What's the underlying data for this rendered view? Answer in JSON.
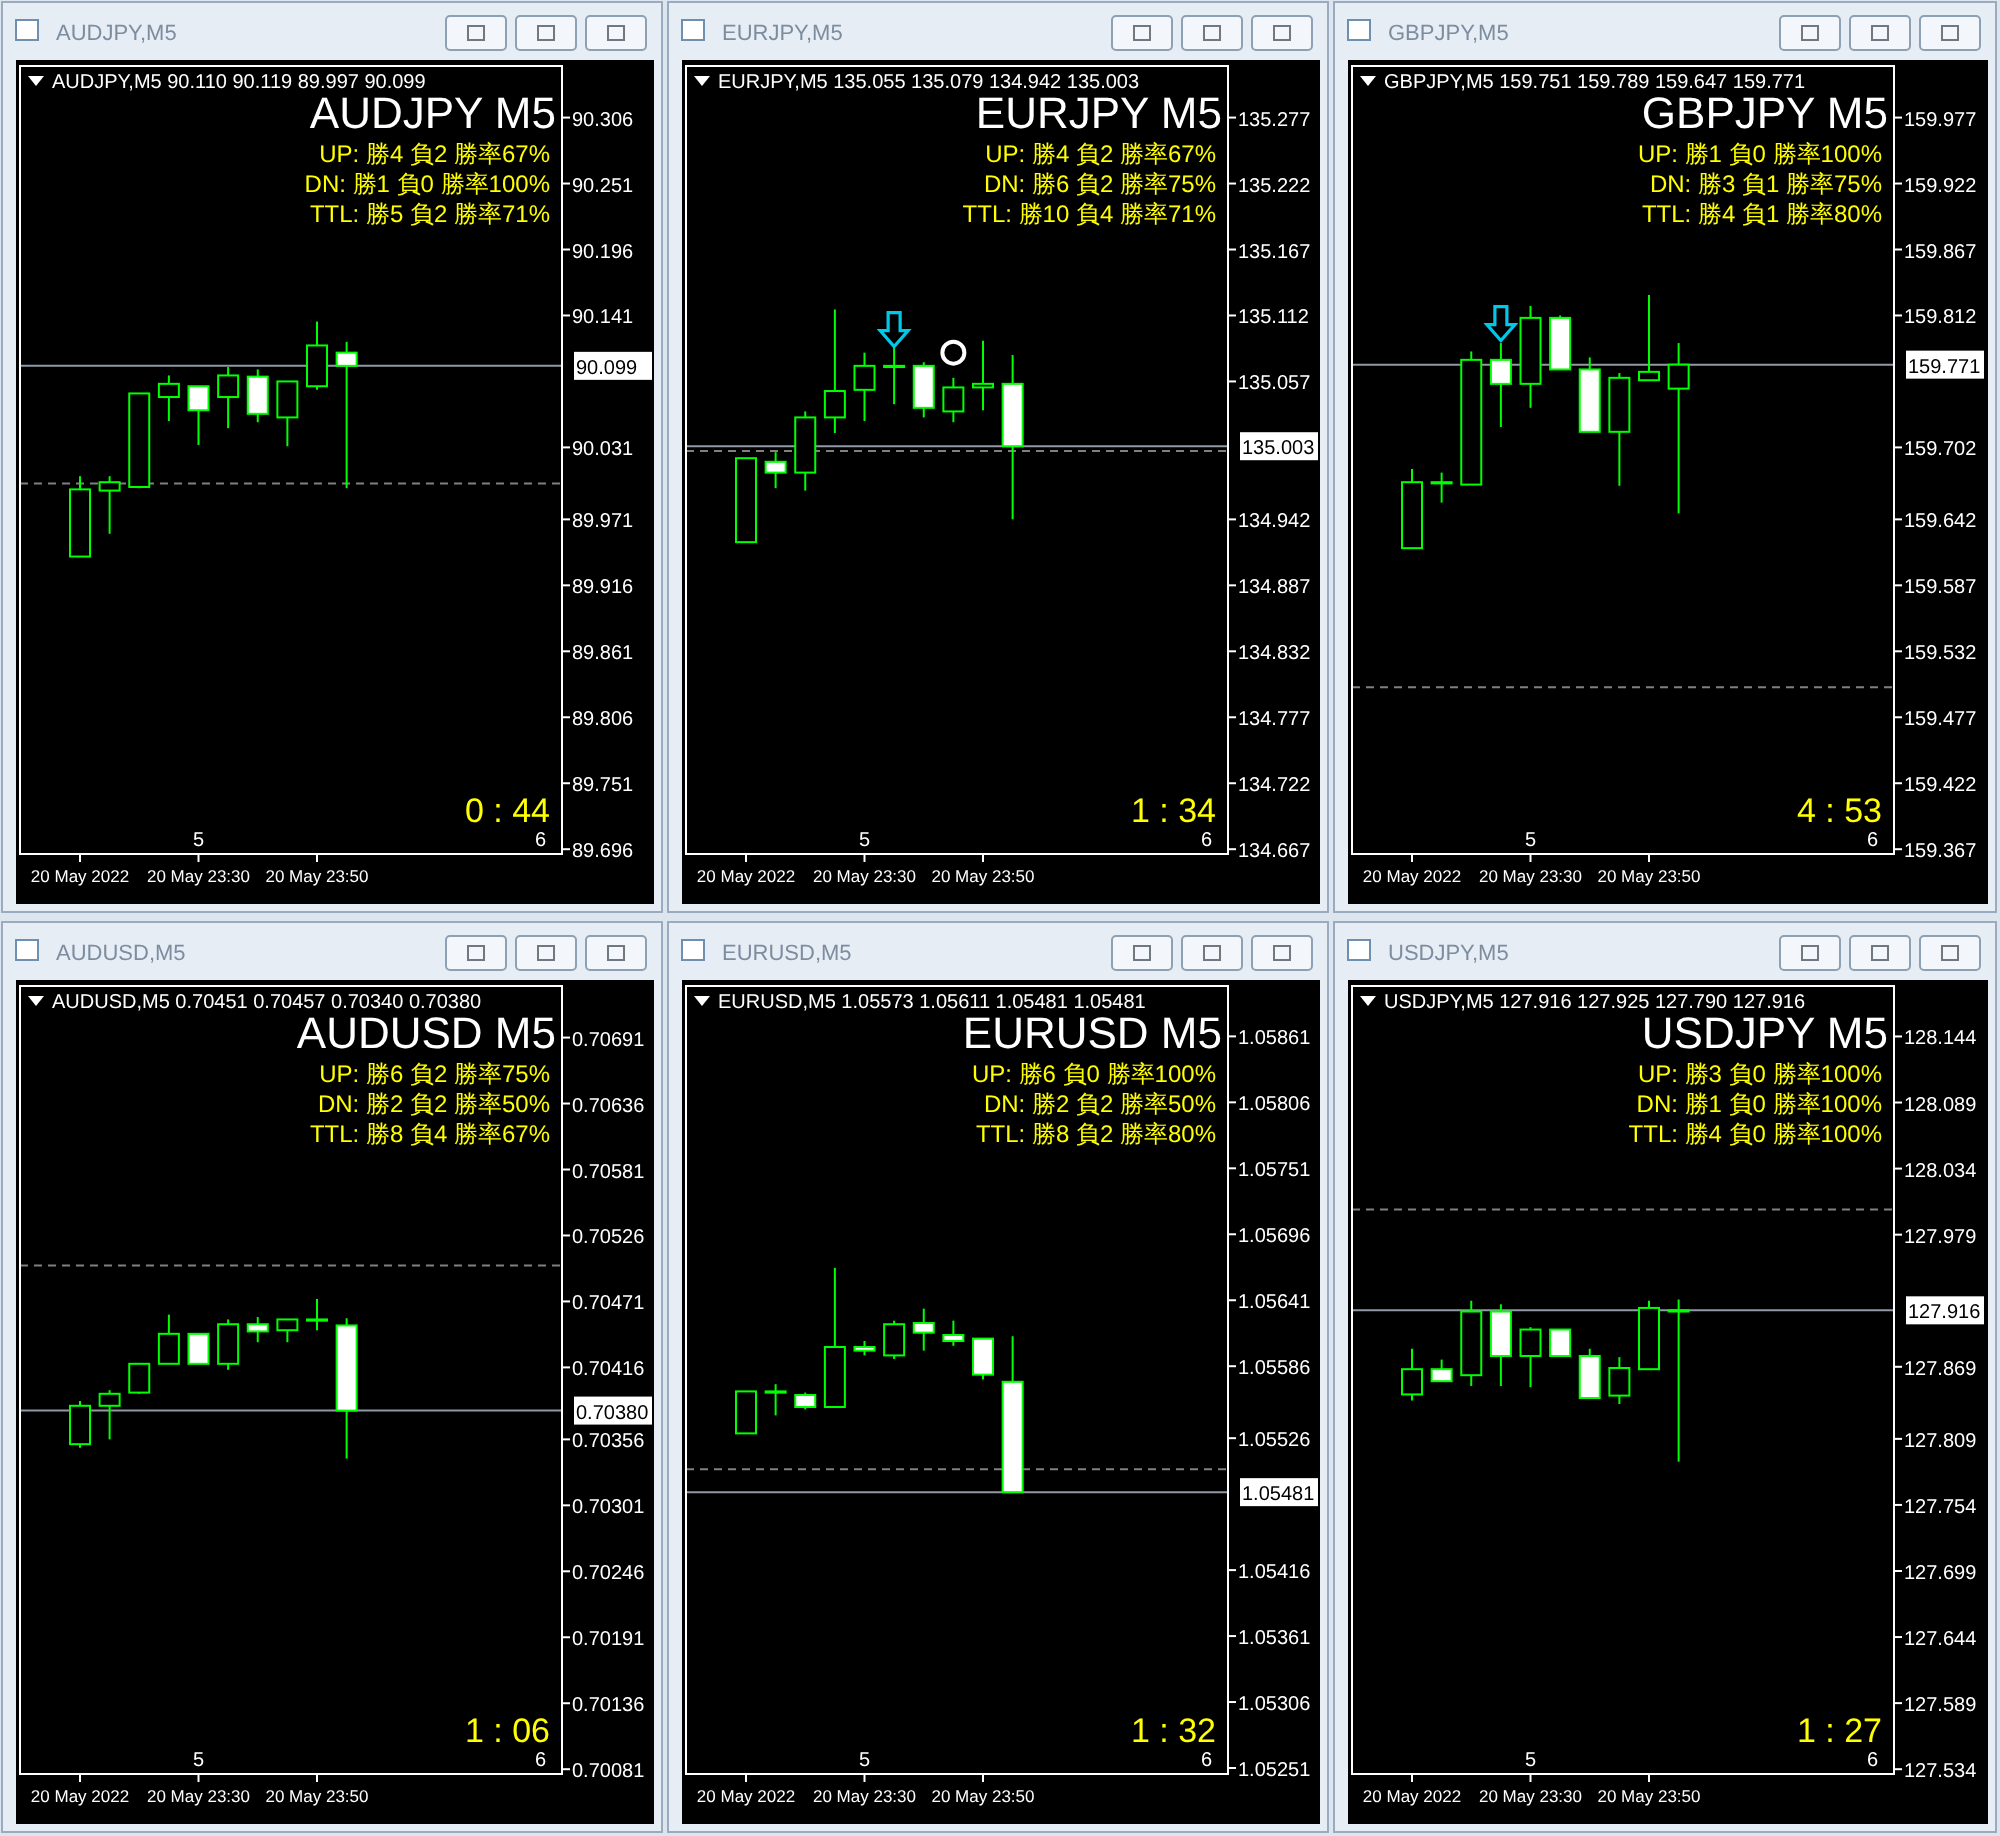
{
  "chart_data": [
    {
      "type": "candlestick",
      "title": "AUDJPY M5",
      "subtitle": "AUDJPY,M5 90.110 90.119 89.997 90.099",
      "annotations": [
        "AUDJPY,M5",
        "UP: 勝4 負2 勝率67%",
        "DN: 勝1 負0 勝率100%",
        "TTL: 勝5 負2 勝率71%",
        "0 : 44",
        "5",
        "6"
      ],
      "categories": [
        "20 May 2022",
        null,
        null,
        null,
        "20 May 23:30",
        null,
        null,
        null,
        "20 May 23:50",
        null,
        null,
        null,
        null,
        null,
        null,
        null,
        null
      ],
      "ohlc": [
        [
          89.94,
          90.007,
          89.94,
          89.996
        ],
        [
          89.995,
          90.007,
          89.959,
          90.002
        ],
        [
          89.998,
          90.076,
          89.997,
          90.076
        ],
        [
          90.073,
          90.091,
          90.053,
          90.084
        ],
        [
          90.082,
          90.082,
          90.033,
          90.062
        ],
        [
          90.073,
          90.098,
          90.047,
          90.091
        ],
        [
          90.09,
          90.096,
          90.052,
          90.059
        ],
        [
          90.056,
          90.086,
          90.032,
          90.086
        ],
        [
          90.082,
          90.136,
          90.079,
          90.116
        ],
        [
          90.11,
          90.119,
          89.997,
          90.099
        ],
        null,
        null,
        null,
        null,
        null,
        null,
        null
      ],
      "color": "#00ff00",
      "colors": [
        "#000000",
        "#000000",
        "#000000",
        "#000000",
        "#ffffff",
        "#000000",
        "#ffffff",
        "#000000",
        "#000000",
        "#ffffff",
        null,
        null,
        null,
        null,
        null,
        null,
        null
      ],
      "ylim": [
        89.692,
        90.349
      ],
      "yticks": [
        90.306,
        90.251,
        90.196,
        90.141,
        90.031,
        89.971,
        89.916,
        89.861,
        89.806,
        89.751,
        89.696
      ],
      "ref_lines": [
        {
          "axis": "y",
          "value": 90.099,
          "label": "90.099",
          "color": "#8f9aa6"
        },
        {
          "axis": "y",
          "value": 90.001,
          "color": "#808080",
          "line_style": "dashed"
        }
      ]
    },
    {
      "type": "candlestick",
      "title": "EURJPY M5",
      "subtitle": "EURJPY,M5 135.055 135.079 134.942 135.003",
      "annotations": [
        "EURJPY,M5",
        "UP: 勝4 負2 勝率67%",
        "DN: 勝6 負2 勝率75%",
        "TTL: 勝10 負4 勝率71%",
        "1 : 34",
        "5",
        "6"
      ],
      "categories": [
        "20 May 2022",
        null,
        null,
        null,
        "20 May 23:30",
        null,
        null,
        null,
        "20 May 23:50",
        null,
        null,
        null,
        null,
        null,
        null,
        null,
        null
      ],
      "ohlc": [
        [
          134.923,
          134.993,
          134.923,
          134.993
        ],
        [
          134.99,
          134.998,
          134.968,
          134.981
        ],
        [
          134.981,
          135.032,
          134.966,
          135.027
        ],
        [
          135.027,
          135.117,
          135.014,
          135.049
        ],
        [
          135.05,
          135.081,
          135.024,
          135.07
        ],
        [
          135.07,
          135.086,
          135.038,
          135.07
        ],
        [
          135.07,
          135.073,
          135.027,
          135.035
        ],
        [
          135.032,
          135.06,
          135.023,
          135.052
        ],
        [
          135.052,
          135.091,
          135.033,
          135.055
        ],
        [
          135.055,
          135.079,
          134.942,
          135.003
        ],
        null,
        null,
        null,
        null,
        null,
        null,
        null
      ],
      "color": "#00ff00",
      "colors": [
        "#000000",
        "#ffffff",
        "#000000",
        "#000000",
        "#000000",
        "#000000",
        "#ffffff",
        "#000000",
        "#000000",
        "#ffffff",
        null,
        null,
        null,
        null,
        null,
        null,
        null
      ],
      "ylim": [
        134.663,
        135.32
      ],
      "yticks": [
        135.277,
        135.222,
        135.167,
        135.112,
        135.057,
        134.942,
        134.887,
        134.832,
        134.777,
        134.722,
        134.667
      ],
      "ref_lines": [
        {
          "axis": "y",
          "value": 135.003,
          "label": "135.003",
          "color": "#8f9aa6"
        },
        {
          "axis": "y",
          "value": 134.999,
          "color": "#808080",
          "line_style": "dashed"
        }
      ],
      "series": [
        {
          "type": "scatter",
          "values": [
            null,
            null,
            null,
            null,
            null,
            135.101,
            null,
            null,
            null,
            null,
            null,
            null,
            null,
            null,
            null,
            null,
            null
          ],
          "marker": "triangle",
          "color": "#00c8e8"
        },
        {
          "type": "scatter",
          "values": [
            null,
            null,
            null,
            null,
            null,
            null,
            null,
            135.081,
            null,
            null,
            null,
            null,
            null,
            null,
            null,
            null,
            null
          ],
          "marker": "circle",
          "color": "#ffffff"
        }
      ]
    },
    {
      "type": "candlestick",
      "title": "GBPJPY M5",
      "subtitle": "GBPJPY,M5 159.751 159.789 159.647 159.771",
      "annotations": [
        "GBPJPY,M5",
        "UP: 勝1 負0 勝率100%",
        "DN: 勝3 負1 勝率75%",
        "TTL: 勝4 負1 勝率80%",
        "4 : 53",
        "5",
        "6"
      ],
      "categories": [
        "20 May 2022",
        null,
        null,
        null,
        "20 May 23:30",
        null,
        null,
        null,
        "20 May 23:50",
        null,
        null,
        null,
        null,
        null,
        null,
        null,
        null
      ],
      "ohlc": [
        [
          159.618,
          159.684,
          159.618,
          159.673
        ],
        [
          159.673,
          159.681,
          159.656,
          159.673
        ],
        [
          159.671,
          159.782,
          159.671,
          159.775
        ],
        [
          159.775,
          159.789,
          159.719,
          159.755
        ],
        [
          159.755,
          159.82,
          159.735,
          159.81
        ],
        [
          159.81,
          159.812,
          159.767,
          159.767
        ],
        [
          159.767,
          159.777,
          159.715,
          159.715
        ],
        [
          159.715,
          159.764,
          159.67,
          159.76
        ],
        [
          159.758,
          159.829,
          159.758,
          159.765
        ],
        [
          159.751,
          159.789,
          159.647,
          159.771
        ],
        null,
        null,
        null,
        null,
        null,
        null,
        null
      ],
      "color": "#00ff00",
      "colors": [
        "#000000",
        "#000000",
        "#000000",
        "#ffffff",
        "#000000",
        "#ffffff",
        "#ffffff",
        "#000000",
        "#000000",
        "#000000",
        null,
        null,
        null,
        null,
        null,
        null,
        null
      ],
      "ylim": [
        159.363,
        160.02
      ],
      "yticks": [
        159.977,
        159.922,
        159.867,
        159.812,
        159.702,
        159.642,
        159.587,
        159.532,
        159.477,
        159.422,
        159.367
      ],
      "ref_lines": [
        {
          "axis": "y",
          "value": 159.771,
          "label": "159.771",
          "color": "#8f9aa6"
        },
        {
          "axis": "y",
          "value": 159.502,
          "color": "#808080",
          "line_style": "dashed"
        }
      ],
      "series": [
        {
          "type": "scatter",
          "values": [
            null,
            null,
            null,
            159.806,
            null,
            null,
            null,
            null,
            null,
            null,
            null,
            null,
            null,
            null,
            null,
            null,
            null
          ],
          "marker": "triangle",
          "color": "#00c8e8"
        }
      ]
    },
    {
      "type": "candlestick",
      "title": "AUDUSD M5",
      "subtitle": "AUDUSD,M5 0.70451 0.70457 0.70340 0.70380",
      "annotations": [
        "AUDUSD,M5",
        "UP: 勝6 負2 勝率75%",
        "DN: 勝2 負2 勝率50%",
        "TTL: 勝8 負4 勝率67%",
        "1 : 06",
        "5",
        "6"
      ],
      "categories": [
        "20 May 2022",
        null,
        null,
        null,
        "20 May 23:30",
        null,
        null,
        null,
        "20 May 23:50",
        null,
        null,
        null,
        null,
        null,
        null,
        null,
        null
      ],
      "ohlc": [
        [
          0.70352,
          0.70388,
          0.70349,
          0.70384
        ],
        [
          0.70384,
          0.70397,
          0.70356,
          0.70394
        ],
        [
          0.70395,
          0.70419,
          0.70394,
          0.70419
        ],
        [
          0.70419,
          0.7046,
          0.70419,
          0.70444
        ],
        [
          0.70444,
          0.70444,
          0.70419,
          0.70419
        ],
        [
          0.70419,
          0.70456,
          0.70414,
          0.70452
        ],
        [
          0.70452,
          0.70458,
          0.70437,
          0.70446
        ],
        [
          0.70447,
          0.70456,
          0.70437,
          0.70456
        ],
        [
          0.70456,
          0.70473,
          0.70447,
          0.70456
        ],
        [
          0.70451,
          0.70457,
          0.7034,
          0.7038
        ],
        null,
        null,
        null,
        null,
        null,
        null,
        null
      ],
      "color": "#00ff00",
      "colors": [
        "#000000",
        "#000000",
        "#000000",
        "#000000",
        "#ffffff",
        "#000000",
        "#ffffff",
        "#000000",
        "#000000",
        "#ffffff",
        null,
        null,
        null,
        null,
        null,
        null,
        null
      ],
      "ylim": [
        0.70077,
        0.70734
      ],
      "yticks": [
        0.70691,
        0.70636,
        0.70581,
        0.70526,
        0.70471,
        0.70416,
        0.70356,
        0.70301,
        0.70246,
        0.70191,
        0.70136,
        0.70081
      ],
      "ref_lines": [
        {
          "axis": "y",
          "value": 0.7038,
          "label": "0.70380",
          "color": "#8f9aa6"
        },
        {
          "axis": "y",
          "value": 0.70501,
          "color": "#808080",
          "line_style": "dashed"
        }
      ]
    },
    {
      "type": "candlestick",
      "title": "EURUSD M5",
      "subtitle": "EURUSD,M5 1.05573 1.05611 1.05481 1.05481",
      "annotations": [
        "EURUSD,M5",
        "UP: 勝6 負0 勝率100%",
        "DN: 勝2 負2 勝率50%",
        "TTL: 勝8 負2 勝率80%",
        "1 : 32",
        "5",
        "6"
      ],
      "categories": [
        "20 May 2022",
        null,
        null,
        null,
        "20 May 23:30",
        null,
        null,
        null,
        "20 May 23:50",
        null,
        null,
        null,
        null,
        null,
        null,
        null,
        null
      ],
      "ohlc": [
        [
          1.0553,
          1.05565,
          1.0553,
          1.05565
        ],
        [
          1.05565,
          1.05571,
          1.05545,
          1.05565
        ],
        [
          1.05562,
          1.05564,
          1.0555,
          1.05552
        ],
        [
          1.05552,
          1.05668,
          1.05552,
          1.05602
        ],
        [
          1.05602,
          1.05607,
          1.05595,
          1.05599
        ],
        [
          1.05595,
          1.05624,
          1.05592,
          1.05621
        ],
        [
          1.05622,
          1.05634,
          1.05599,
          1.05614
        ],
        [
          1.05612,
          1.05624,
          1.05603,
          1.05607
        ],
        [
          1.05609,
          1.05609,
          1.05575,
          1.05579
        ],
        [
          1.05573,
          1.05611,
          1.05481,
          1.05481
        ],
        null,
        null,
        null,
        null,
        null,
        null,
        null
      ],
      "color": "#00ff00",
      "colors": [
        "#000000",
        "#000000",
        "#ffffff",
        "#000000",
        "#ffffff",
        "#000000",
        "#ffffff",
        "#ffffff",
        "#ffffff",
        "#ffffff",
        null,
        null,
        null,
        null,
        null,
        null,
        null
      ],
      "ylim": [
        1.05246,
        1.05903
      ],
      "yticks": [
        1.05861,
        1.05806,
        1.05751,
        1.05696,
        1.05641,
        1.05586,
        1.05526,
        1.05416,
        1.05361,
        1.05306,
        1.05251
      ],
      "ref_lines": [
        {
          "axis": "y",
          "value": 1.05481,
          "label": "1.05481",
          "color": "#8f9aa6"
        },
        {
          "axis": "y",
          "value": 1.055,
          "color": "#808080",
          "line_style": "dashed"
        }
      ]
    },
    {
      "type": "candlestick",
      "title": "USDJPY M5",
      "subtitle": "USDJPY,M5 127.916 127.925 127.790 127.916",
      "annotations": [
        "USDJPY,M5",
        "UP: 勝3 負0 勝率100%",
        "DN: 勝1 負0 勝率100%",
        "TTL: 勝4 負0 勝率100%",
        "1 : 27",
        "5",
        "6"
      ],
      "categories": [
        "20 May 2022",
        null,
        null,
        null,
        "20 May 23:30",
        null,
        null,
        null,
        "20 May 23:50",
        null,
        null,
        null,
        null,
        null,
        null,
        null,
        null
      ],
      "ohlc": [
        [
          127.846,
          127.884,
          127.841,
          127.867
        ],
        [
          127.867,
          127.875,
          127.857,
          127.857
        ],
        [
          127.862,
          127.924,
          127.853,
          127.915
        ],
        [
          127.915,
          127.921,
          127.853,
          127.878
        ],
        [
          127.878,
          127.902,
          127.852,
          127.9
        ],
        [
          127.9,
          127.9,
          127.878,
          127.878
        ],
        [
          127.878,
          127.884,
          127.843,
          127.843
        ],
        [
          127.845,
          127.877,
          127.838,
          127.868
        ],
        [
          127.867,
          127.924,
          127.867,
          127.918
        ],
        [
          127.916,
          127.925,
          127.79,
          127.916
        ],
        null,
        null,
        null,
        null,
        null,
        null,
        null
      ],
      "color": "#00ff00",
      "colors": [
        "#000000",
        "#ffffff",
        "#000000",
        "#ffffff",
        "#000000",
        "#ffffff",
        "#ffffff",
        "#000000",
        "#000000",
        "#000000",
        null,
        null,
        null,
        null,
        null,
        null,
        null
      ],
      "ylim": [
        127.53,
        128.186
      ],
      "yticks": [
        128.144,
        128.089,
        128.034,
        127.979,
        127.869,
        127.809,
        127.754,
        127.699,
        127.644,
        127.589,
        127.534
      ],
      "ref_lines": [
        {
          "axis": "y",
          "value": 127.916,
          "label": "127.916",
          "color": "#8f9aa6"
        },
        {
          "axis": "y",
          "value": 128.0,
          "color": "#808080",
          "line_style": "dashed"
        }
      ]
    }
  ]
}
